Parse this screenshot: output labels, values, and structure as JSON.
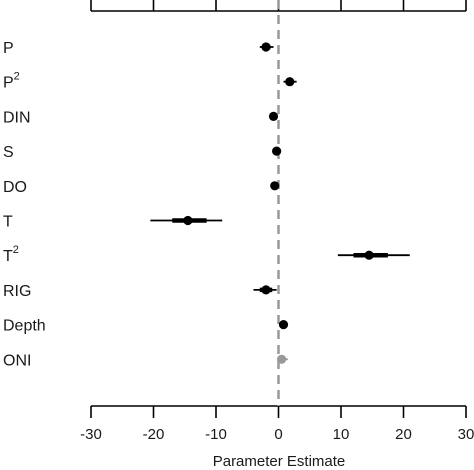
{
  "chart_data": {
    "type": "scatter",
    "subtype": "coefficient-plot",
    "xlabel": "Parameter Estimate",
    "xlim": [
      -30,
      30
    ],
    "xticks": [
      -30,
      -20,
      -10,
      0,
      10,
      20,
      30
    ],
    "tick_labels": [
      "-30",
      "-20",
      "-10",
      "0",
      "10",
      "20",
      "30"
    ],
    "reference_line": {
      "x": 0,
      "style": "dashed",
      "color": "#999999"
    },
    "grid": false,
    "legend": "none",
    "colors": {
      "point": "#000000",
      "muted": "#999999"
    },
    "points": [
      {
        "label": "P",
        "sup": "",
        "estimate": -2.0,
        "inner": [
          -2.5,
          -1.3
        ],
        "outer": [
          -3.0,
          -0.8
        ],
        "color": "#000000"
      },
      {
        "label": "P",
        "sup": "2",
        "estimate": 1.8,
        "inner": [
          1.2,
          2.4
        ],
        "outer": [
          0.8,
          2.9
        ],
        "color": "#000000"
      },
      {
        "label": "DIN",
        "sup": "",
        "estimate": -0.8,
        "inner": [
          -1.0,
          -0.6
        ],
        "outer": [
          -1.2,
          -0.4
        ],
        "color": "#000000"
      },
      {
        "label": "S",
        "sup": "",
        "estimate": -0.3,
        "inner": [
          -0.5,
          -0.1
        ],
        "outer": [
          -0.6,
          0.0
        ],
        "color": "#000000"
      },
      {
        "label": "DO",
        "sup": "",
        "estimate": -0.6,
        "inner": [
          -0.8,
          -0.4
        ],
        "outer": [
          -1.0,
          -0.2
        ],
        "color": "#000000"
      },
      {
        "label": "T",
        "sup": "",
        "estimate": -14.5,
        "inner": [
          -17.0,
          -11.5
        ],
        "outer": [
          -20.5,
          -9.0
        ],
        "color": "#000000"
      },
      {
        "label": "T",
        "sup": "2",
        "estimate": 14.5,
        "inner": [
          12.0,
          17.5
        ],
        "outer": [
          9.5,
          21.0
        ],
        "color": "#000000"
      },
      {
        "label": "RIG",
        "sup": "",
        "estimate": -2.0,
        "inner": [
          -3.0,
          -1.0
        ],
        "outer": [
          -4.0,
          -0.3
        ],
        "color": "#000000"
      },
      {
        "label": "Depth",
        "sup": "",
        "estimate": 0.8,
        "inner": [
          0.6,
          1.0
        ],
        "outer": [
          0.4,
          1.2
        ],
        "color": "#000000"
      },
      {
        "label": "ONI",
        "sup": "",
        "estimate": 0.5,
        "inner": [
          0.2,
          0.9
        ],
        "outer": [
          -0.2,
          1.5
        ],
        "color": "#999999"
      }
    ]
  }
}
